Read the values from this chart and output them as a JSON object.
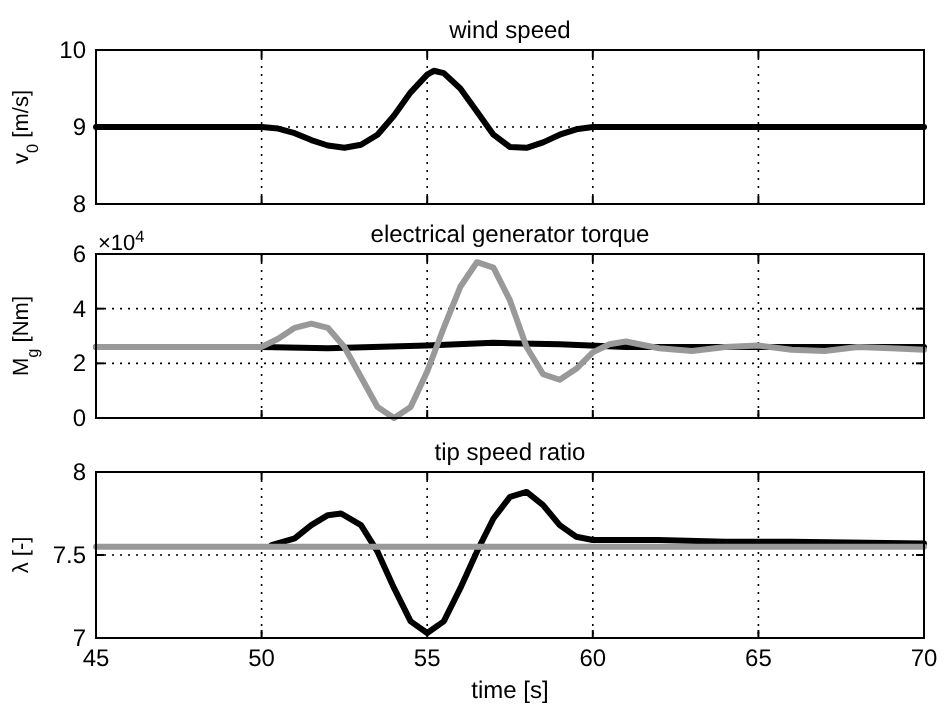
{
  "chart_data": [
    {
      "type": "line",
      "title": "wind speed",
      "ylabel": "v$_{0}$ [m/s]",
      "xlim": [
        45,
        70
      ],
      "xticks": [
        45,
        50,
        55,
        60,
        65,
        70
      ],
      "ylim": [
        8,
        10
      ],
      "yticks": [
        8,
        9,
        10
      ],
      "grid": true,
      "tick_labels": "y",
      "line_style": "solid",
      "marker": "none",
      "series": [
        {
          "color": "#000000",
          "x": [
            45,
            50,
            50.5,
            51,
            51.5,
            52,
            52.5,
            53,
            53.5,
            54,
            54.5,
            55,
            55.2,
            55.5,
            56,
            56.5,
            57,
            57.5,
            58,
            58.5,
            59,
            59.5,
            60,
            70
          ],
          "values": [
            9,
            9,
            8.98,
            8.92,
            8.83,
            8.76,
            8.73,
            8.77,
            8.9,
            9.15,
            9.45,
            9.68,
            9.73,
            9.7,
            9.5,
            9.2,
            8.9,
            8.74,
            8.73,
            8.8,
            8.9,
            8.97,
            9,
            9
          ]
        }
      ]
    },
    {
      "type": "line",
      "title": "electrical generator torque",
      "ylabel": "M$_{g}$ [Nm]",
      "annotations": [
        "×10$^{4}$"
      ],
      "xlim": [
        45,
        70
      ],
      "xticks": [
        45,
        50,
        55,
        60,
        65,
        70
      ],
      "ylim": [
        0,
        6
      ],
      "yticks": [
        0,
        2,
        4,
        6
      ],
      "grid": true,
      "tick_labels": "y",
      "line_style": "solid",
      "marker": "none",
      "series": [
        {
          "color": "#000000",
          "x": [
            45,
            50,
            52,
            55,
            57,
            59,
            61,
            65,
            70
          ],
          "values": [
            2.6,
            2.6,
            2.55,
            2.65,
            2.75,
            2.7,
            2.6,
            2.6,
            2.6
          ]
        },
        {
          "color": "#999999",
          "x": [
            45,
            50,
            50.5,
            51,
            51.5,
            52,
            52.5,
            53,
            53.5,
            54,
            54.5,
            55,
            55.5,
            56,
            56.5,
            57,
            57.5,
            58,
            58.5,
            59,
            59.5,
            60,
            60.5,
            61,
            62,
            63,
            64,
            65,
            66,
            67,
            68,
            69,
            70
          ],
          "values": [
            2.6,
            2.6,
            2.9,
            3.3,
            3.45,
            3.3,
            2.6,
            1.5,
            0.4,
            0,
            0.4,
            1.7,
            3.3,
            4.8,
            5.7,
            5.5,
            4.3,
            2.6,
            1.6,
            1.4,
            1.8,
            2.4,
            2.7,
            2.8,
            2.55,
            2.45,
            2.6,
            2.65,
            2.5,
            2.45,
            2.6,
            2.55,
            2.5
          ]
        }
      ]
    },
    {
      "type": "line",
      "title": "tip speed ratio",
      "xlabel": "time [s]",
      "ylabel": "λ [-]",
      "xlim": [
        45,
        70
      ],
      "xticks": [
        45,
        50,
        55,
        60,
        65,
        70
      ],
      "ylim": [
        7,
        8
      ],
      "yticks": [
        7,
        7.5,
        8
      ],
      "grid": true,
      "line_style": "solid",
      "marker": "none",
      "series": [
        {
          "color": "#000000",
          "x": [
            50.3,
            51,
            51.5,
            52,
            52.4,
            53,
            53.5,
            54,
            54.5,
            55,
            55.5,
            56,
            56.5,
            57,
            57.5,
            58,
            58.5,
            59,
            59.5,
            60,
            62,
            64,
            66,
            70
          ],
          "values": [
            7.56,
            7.6,
            7.68,
            7.74,
            7.75,
            7.68,
            7.52,
            7.3,
            7.1,
            7.03,
            7.1,
            7.3,
            7.52,
            7.72,
            7.85,
            7.88,
            7.8,
            7.68,
            7.61,
            7.59,
            7.59,
            7.58,
            7.58,
            7.57
          ]
        },
        {
          "color": "#999999",
          "x": [
            45,
            70
          ],
          "values": [
            7.55,
            7.55
          ]
        }
      ]
    }
  ]
}
